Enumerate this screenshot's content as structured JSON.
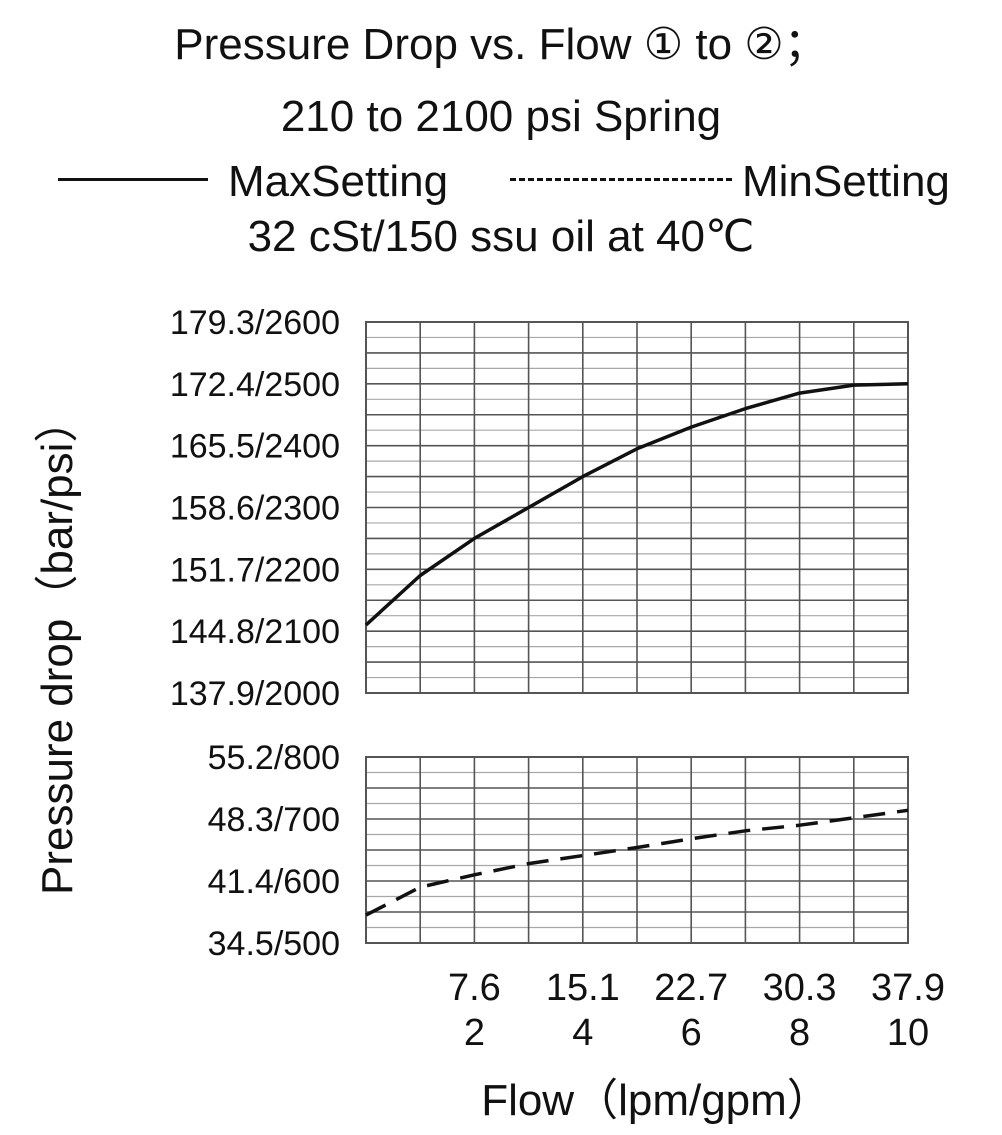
{
  "title": {
    "line1": "Pressure Drop vs. Flow ① to ②；",
    "line2": "210 to 2100 psi Spring",
    "line4": "32 cSt/150 ssu oil at 40℃"
  },
  "legend": {
    "solid_label": "MaxSetting",
    "dashed_label": "MinSetting"
  },
  "chart_data": {
    "type": "line",
    "title": "Pressure Drop vs. Flow ① to ②； 210 to 2100 psi Spring",
    "subtitle": "32 cSt/150 ssu oil at 40℃",
    "xlabel": "Flow（lpm/gpm）",
    "ylabel": "Pressure drop（bar/psi）",
    "xlim_gpm": [
      0,
      10
    ],
    "x_ticks": [
      {
        "gpm": 2,
        "lpm_label": "7.6",
        "gpm_label": "2"
      },
      {
        "gpm": 4,
        "lpm_label": "15.1",
        "gpm_label": "4"
      },
      {
        "gpm": 6,
        "lpm_label": "22.7",
        "gpm_label": "6"
      },
      {
        "gpm": 8,
        "lpm_label": "30.3",
        "gpm_label": "8"
      },
      {
        "gpm": 10,
        "lpm_label": "37.9",
        "gpm_label": "10"
      }
    ],
    "grid": true,
    "axis_break": true,
    "panels": [
      {
        "name": "upper",
        "ylim_psi": [
          2000,
          2600
        ],
        "y_ticks": [
          {
            "psi": 2600,
            "label": "179.3/2600"
          },
          {
            "psi": 2500,
            "label": "172.4/2500"
          },
          {
            "psi": 2400,
            "label": "165.5/2400"
          },
          {
            "psi": 2300,
            "label": "158.6/2300"
          },
          {
            "psi": 2200,
            "label": "151.7/2200"
          },
          {
            "psi": 2100,
            "label": "144.8/2100"
          },
          {
            "psi": 2000,
            "label": "137.9/2000"
          }
        ]
      },
      {
        "name": "lower",
        "ylim_psi": [
          500,
          800
        ],
        "y_ticks": [
          {
            "psi": 800,
            "label": "55.2/800"
          },
          {
            "psi": 700,
            "label": "48.3/700"
          },
          {
            "psi": 600,
            "label": "41.4/600"
          },
          {
            "psi": 500,
            "label": "34.5/500"
          }
        ]
      }
    ],
    "series": [
      {
        "name": "MaxSetting",
        "style": "solid",
        "panel": "upper",
        "x_gpm": [
          0,
          1,
          2,
          3,
          4,
          5,
          6,
          7,
          8,
          9,
          10
        ],
        "y_psi": [
          2110,
          2190,
          2250,
          2300,
          2350,
          2395,
          2430,
          2460,
          2485,
          2498,
          2500
        ]
      },
      {
        "name": "MinSetting",
        "style": "dashed",
        "panel": "lower",
        "x_gpm": [
          0,
          1,
          2,
          3,
          4,
          5,
          6,
          7,
          8,
          9,
          10
        ],
        "y_psi": [
          545,
          590,
          610,
          628,
          641,
          654,
          668,
          681,
          690,
          702,
          714
        ]
      }
    ],
    "colors": {
      "line": "#111111",
      "grid": "#555555",
      "grid_light": "#a8a8a8"
    }
  },
  "axis": {
    "ylabel": "Pressure drop（bar/psi）",
    "xlabel": "Flow（lpm/gpm）"
  }
}
